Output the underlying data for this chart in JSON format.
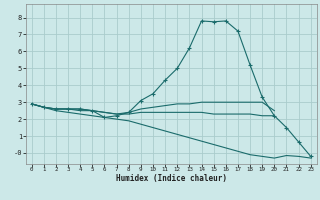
{
  "xlabel": "Humidex (Indice chaleur)",
  "bg_color": "#cce8e8",
  "grid_color": "#aacccc",
  "line_color": "#1a6b6b",
  "xlim": [
    -0.5,
    23.5
  ],
  "ylim": [
    -0.65,
    8.8
  ],
  "xticks": [
    0,
    1,
    2,
    3,
    4,
    5,
    6,
    7,
    8,
    9,
    10,
    11,
    12,
    13,
    14,
    15,
    16,
    17,
    18,
    19,
    20,
    21,
    22,
    23
  ],
  "yticks": [
    0,
    1,
    2,
    3,
    4,
    5,
    6,
    7,
    8
  ],
  "ytick_labels": [
    "-0",
    "1",
    "2",
    "3",
    "4",
    "5",
    "6",
    "7",
    "8"
  ],
  "lines": [
    {
      "x": [
        0,
        1,
        2,
        3,
        4,
        5,
        6,
        7,
        8,
        9,
        10,
        11,
        12,
        13,
        14,
        15,
        16,
        17,
        18,
        19,
        20,
        21,
        22,
        23
      ],
      "y": [
        2.9,
        2.7,
        2.6,
        2.6,
        2.6,
        2.5,
        2.1,
        2.2,
        2.4,
        3.1,
        3.5,
        4.3,
        5.0,
        6.2,
        7.8,
        7.75,
        7.8,
        7.2,
        5.2,
        3.3,
        2.2,
        1.5,
        0.65,
        -0.2
      ],
      "marker": true
    },
    {
      "x": [
        0,
        1,
        2,
        3,
        4,
        5,
        6,
        7,
        8,
        9,
        10,
        11,
        12,
        13,
        14,
        15,
        16,
        17,
        18,
        19,
        20
      ],
      "y": [
        2.9,
        2.7,
        2.6,
        2.6,
        2.6,
        2.5,
        2.4,
        2.3,
        2.4,
        2.6,
        2.7,
        2.8,
        2.9,
        2.9,
        3.0,
        3.0,
        3.0,
        3.0,
        3.0,
        3.0,
        2.5
      ],
      "marker": false
    },
    {
      "x": [
        0,
        1,
        2,
        3,
        4,
        5,
        6,
        7,
        8,
        9,
        10,
        11,
        12,
        13,
        14,
        15,
        16,
        17,
        18,
        19,
        20
      ],
      "y": [
        2.9,
        2.7,
        2.6,
        2.6,
        2.5,
        2.5,
        2.4,
        2.3,
        2.3,
        2.4,
        2.4,
        2.4,
        2.4,
        2.4,
        2.4,
        2.3,
        2.3,
        2.3,
        2.3,
        2.2,
        2.2
      ],
      "marker": false
    },
    {
      "x": [
        0,
        1,
        2,
        3,
        4,
        5,
        6,
        7,
        8,
        9,
        10,
        11,
        12,
        13,
        14,
        15,
        16,
        17,
        18,
        19,
        20,
        21,
        22,
        23
      ],
      "y": [
        2.9,
        2.7,
        2.5,
        2.4,
        2.3,
        2.2,
        2.1,
        2.0,
        1.9,
        1.7,
        1.5,
        1.3,
        1.1,
        0.9,
        0.7,
        0.5,
        0.3,
        0.1,
        -0.1,
        -0.2,
        -0.3,
        -0.15,
        -0.2,
        -0.3
      ],
      "marker": false
    }
  ]
}
